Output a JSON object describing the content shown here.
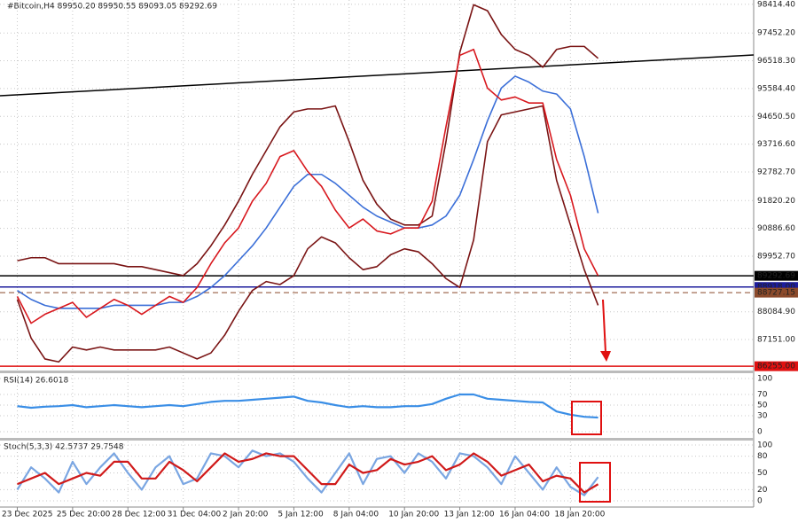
{
  "chart_data": [
    {
      "type": "line",
      "title": "#Bitcoin,H4  89950.20 89950.55 89093.05 89292.69",
      "x": [
        0,
        4,
        8,
        12,
        16,
        20,
        24,
        28,
        32,
        36,
        40,
        44,
        48,
        52,
        56,
        60,
        64,
        68,
        72,
        76,
        80,
        84,
        88,
        92,
        96,
        100,
        104,
        108,
        112,
        116,
        120,
        124,
        128,
        132,
        136,
        140,
        144,
        148,
        152,
        156,
        160,
        164,
        168
      ],
      "xlim": [
        -5,
        213
      ],
      "xticks": [
        {
          "value": 0,
          "label": "23 Dec 2025"
        },
        {
          "value": 16,
          "label": "25 Dec 20:00"
        },
        {
          "value": 32,
          "label": "28 Dec 12:00"
        },
        {
          "value": 48,
          "label": "31 Dec 04:00"
        },
        {
          "value": 64,
          "label": "2 Jan 20:00"
        },
        {
          "value": 80,
          "label": "5 Jan 12:00"
        },
        {
          "value": 96,
          "label": "8 Jan 04:00"
        },
        {
          "value": 112,
          "label": "10 Jan 20:00"
        },
        {
          "value": 128,
          "label": "13 Jan 12:00"
        },
        {
          "value": 144,
          "label": "16 Jan 04:00"
        },
        {
          "value": 160,
          "label": "18 Jan 20:00"
        }
      ],
      "ylim": [
        86110,
        98560
      ],
      "yticks": [
        {
          "value": 98414.4,
          "label": "98414.40"
        },
        {
          "value": 97452.2,
          "label": "97452.20"
        },
        {
          "value": 96518.3,
          "label": "96518.30"
        },
        {
          "value": 95584.4,
          "label": "95584.40"
        },
        {
          "value": 94650.5,
          "label": "94650.50"
        },
        {
          "value": 93716.6,
          "label": "93716.60"
        },
        {
          "value": 92782.7,
          "label": "92782.70"
        },
        {
          "value": 91820.2,
          "label": "91820.20"
        },
        {
          "value": 90886.6,
          "label": "90886.60"
        },
        {
          "value": 89952.7,
          "label": "89952.70"
        },
        {
          "value": 88084.9,
          "label": "88084.90"
        },
        {
          "value": 87151,
          "label": "87151.00"
        }
      ],
      "series": [
        {
          "color": "#7a1414",
          "values": [
            89800,
            89900,
            89900,
            89700,
            89700,
            89700,
            89700,
            89700,
            89600,
            89600,
            89500,
            89400,
            89300,
            89700,
            90300,
            91000,
            91800,
            92700,
            93500,
            94300,
            94800,
            94900,
            94900,
            95000,
            93800,
            92500,
            91700,
            91200,
            91000,
            91000,
            91300,
            93800,
            96800,
            98400,
            98200,
            97400,
            96900,
            96700,
            96300,
            96900,
            97000,
            97000,
            96600
          ]
        },
        {
          "color": "#7a1414",
          "values": [
            88500,
            87200,
            86500,
            86400,
            86900,
            86800,
            86900,
            86800,
            86800,
            86800,
            86800,
            86900,
            86700,
            86500,
            86700,
            87300,
            88100,
            88800,
            89100,
            89000,
            89300,
            90200,
            90600,
            90400,
            89900,
            89500,
            89600,
            90000,
            90200,
            90100,
            89700,
            89200,
            88900,
            90500,
            93800,
            94700,
            94800,
            94900,
            95000,
            92500,
            91000,
            89500,
            88300
          ]
        },
        {
          "color": "#3b6fd8",
          "values": [
            88800,
            88500,
            88300,
            88200,
            88200,
            88200,
            88200,
            88300,
            88300,
            88300,
            88300,
            88400,
            88400,
            88600,
            88900,
            89300,
            89800,
            90300,
            90900,
            91600,
            92300,
            92700,
            92700,
            92400,
            92000,
            91600,
            91300,
            91100,
            90900,
            90900,
            91000,
            91300,
            92000,
            93200,
            94500,
            95600,
            96000,
            95800,
            95500,
            95400,
            94900,
            93300,
            91400
          ]
        },
        {
          "color": "#d8181e",
          "values": [
            88600,
            87700,
            88000,
            88200,
            88400,
            87900,
            88200,
            88500,
            88300,
            88000,
            88300,
            88600,
            88400,
            88900,
            89700,
            90400,
            90900,
            91800,
            92400,
            93300,
            93500,
            92800,
            92300,
            91500,
            90900,
            91200,
            90800,
            90700,
            90900,
            90900,
            91800,
            94300,
            96700,
            96900,
            95600,
            95200,
            95300,
            95100,
            95100,
            93200,
            92000,
            90200,
            89292.69
          ]
        }
      ],
      "trendline": {
        "x": [
          -5,
          213
        ],
        "values": [
          95343,
          96713
        ],
        "color": "#000000"
      },
      "levels": [
        {
          "value": 89292.69,
          "color": "#000000"
        },
        {
          "value": 88918,
          "label": "88918.00",
          "color": "#1c1c9c"
        },
        {
          "value": 88727.15,
          "color": "#8b4a2b",
          "dashed": true
        },
        {
          "value": 86255,
          "label": "86255.00",
          "color": "#e01010"
        }
      ]
    },
    {
      "type": "line",
      "title": "RSI(14) 26.6018",
      "ylim": [
        0,
        100
      ],
      "yticks": [
        100,
        70,
        50,
        30,
        0
      ],
      "series": [
        {
          "color": "#3a8ee6",
          "values": [
            48,
            45,
            47,
            48,
            50,
            46,
            48,
            50,
            48,
            46,
            48,
            50,
            48,
            52,
            56,
            58,
            58,
            60,
            62,
            64,
            66,
            58,
            55,
            50,
            46,
            48,
            46,
            46,
            48,
            48,
            52,
            62,
            70,
            70,
            62,
            60,
            58,
            56,
            55,
            38,
            32,
            28,
            26.6018
          ]
        }
      ]
    },
    {
      "type": "line",
      "title": "Stoch(5,3,3) 42.5737 29.7548",
      "ylim": [
        0,
        100
      ],
      "yticks": [
        100,
        80,
        50,
        20,
        0
      ],
      "series": [
        {
          "color": "#7aa6e2",
          "values": [
            20,
            60,
            40,
            15,
            70,
            30,
            60,
            85,
            50,
            20,
            60,
            80,
            30,
            40,
            85,
            80,
            60,
            90,
            80,
            85,
            70,
            40,
            15,
            50,
            85,
            30,
            75,
            80,
            50,
            85,
            70,
            40,
            85,
            80,
            60,
            30,
            80,
            50,
            20,
            60,
            25,
            10,
            42.5737
          ]
        },
        {
          "color": "#d01a1a",
          "values": [
            30,
            40,
            50,
            30,
            40,
            50,
            45,
            70,
            70,
            40,
            40,
            70,
            55,
            35,
            60,
            85,
            70,
            75,
            85,
            80,
            80,
            55,
            30,
            30,
            65,
            50,
            55,
            75,
            65,
            70,
            80,
            55,
            65,
            85,
            70,
            45,
            55,
            65,
            35,
            45,
            40,
            15,
            29.7548
          ]
        }
      ]
    }
  ]
}
